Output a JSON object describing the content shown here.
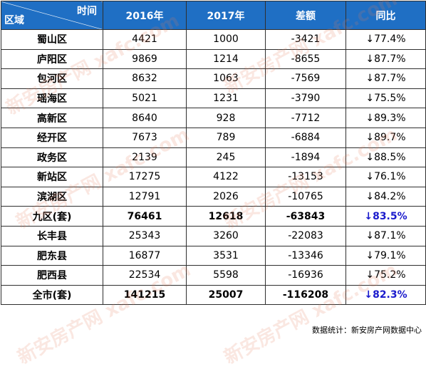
{
  "header": {
    "corner_top": "时间",
    "corner_bottom": "区域",
    "columns": [
      "2016年",
      "2017年",
      "差额",
      "同比"
    ]
  },
  "rows": [
    {
      "name": "蜀山区",
      "y2016": "4421",
      "y2017": "1000",
      "diff": "-3421",
      "yoy": "↓77.4%"
    },
    {
      "name": "庐阳区",
      "y2016": "9869",
      "y2017": "1214",
      "diff": "-8655",
      "yoy": "↓87.7%"
    },
    {
      "name": "包河区",
      "y2016": "8632",
      "y2017": "1063",
      "diff": "-7569",
      "yoy": "↓87.7%"
    },
    {
      "name": "瑶海区",
      "y2016": "5021",
      "y2017": "1231",
      "diff": "-3790",
      "yoy": "↓75.5%"
    },
    {
      "name": "高新区",
      "y2016": "8640",
      "y2017": "928",
      "diff": "-7712",
      "yoy": "↓89.3%"
    },
    {
      "name": "经开区",
      "y2016": "7673",
      "y2017": "789",
      "diff": "-6884",
      "yoy": "↓89.7%"
    },
    {
      "name": "政务区",
      "y2016": "2139",
      "y2017": "245",
      "diff": "-1894",
      "yoy": "↓88.5%"
    },
    {
      "name": "新站区",
      "y2016": "17275",
      "y2017": "4122",
      "diff": "-13153",
      "yoy": "↓76.1%"
    },
    {
      "name": "滨湖区",
      "y2016": "12791",
      "y2017": "2026",
      "diff": "-10765",
      "yoy": "↓84.2%"
    },
    {
      "name": "九区(套)",
      "y2016": "76461",
      "y2017": "12618",
      "diff": "-63843",
      "yoy": "↓83.5%"
    },
    {
      "name": "长丰县",
      "y2016": "25343",
      "y2017": "3260",
      "diff": "-22083",
      "yoy": "↓87.1%"
    },
    {
      "name": "肥东县",
      "y2016": "16877",
      "y2017": "3531",
      "diff": "-13346",
      "yoy": "↓79.1%"
    },
    {
      "name": "肥西县",
      "y2016": "22534",
      "y2017": "5598",
      "diff": "-16936",
      "yoy": "↓75.2%"
    },
    {
      "name": "全市(套)",
      "y2016": "141215",
      "y2017": "25007",
      "diff": "-116208",
      "yoy": "↓82.3%"
    }
  ],
  "watermark": "新安房产网 xafc.com",
  "source_note": "数据统计：新安房产网数据中心",
  "colors": {
    "header_bg": "#1f6fc4",
    "header_text": "#ffffff",
    "yoy_text": "#2a2ad0",
    "border": "#2f2f2f"
  }
}
